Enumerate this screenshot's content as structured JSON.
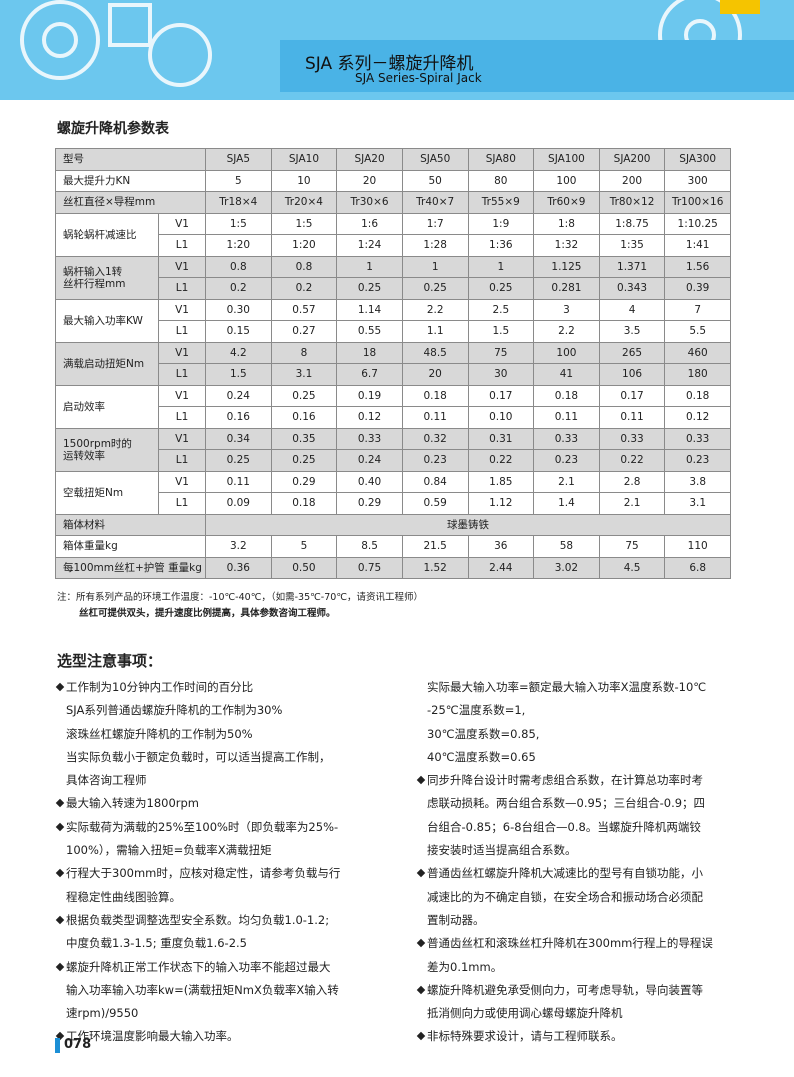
{
  "header": {
    "title": "SJA 系列－螺旋升降机",
    "subtitle": "SJA Series-Spiral Jack"
  },
  "section_title": "螺旋升降机参数表",
  "table": {
    "model_label": "型号",
    "models": [
      "SJA5",
      "SJA10",
      "SJA20",
      "SJA50",
      "SJA80",
      "SJA100",
      "SJA200",
      "SJA300"
    ],
    "rows": [
      {
        "label": [
          "最大提升力KN"
        ],
        "values": [
          "5",
          "10",
          "20",
          "50",
          "80",
          "100",
          "200",
          "300"
        ]
      },
      {
        "label": [
          "丝杠直径×导程mm"
        ],
        "values": [
          "Tr18×4",
          "Tr20×4",
          "Tr30×6",
          "Tr40×7",
          "Tr55×9",
          "Tr60×9",
          "Tr80×12",
          "Tr100×16"
        ]
      },
      {
        "label": [
          "蜗轮蜗杆减速比"
        ],
        "sub": [
          {
            "label": "V1",
            "values": [
              "1:5",
              "1:5",
              "1:6",
              "1:7",
              "1:9",
              "1:8",
              "1:8.75",
              "1:10.25"
            ]
          },
          {
            "label": "L1",
            "values": [
              "1:20",
              "1:20",
              "1:24",
              "1:28",
              "1:36",
              "1:32",
              "1:35",
              "1:41"
            ]
          }
        ]
      },
      {
        "label": [
          "蜗杆输入1转",
          "丝杆行程mm"
        ],
        "sub": [
          {
            "label": "V1",
            "values": [
              "0.8",
              "0.8",
              "1",
              "1",
              "1",
              "1.125",
              "1.371",
              "1.56"
            ]
          },
          {
            "label": "L1",
            "values": [
              "0.2",
              "0.2",
              "0.25",
              "0.25",
              "0.25",
              "0.281",
              "0.343",
              "0.39"
            ]
          }
        ]
      },
      {
        "label": [
          "最大输入功率KW"
        ],
        "sub": [
          {
            "label": "V1",
            "values": [
              "0.30",
              "0.57",
              "1.14",
              "2.2",
              "2.5",
              "3",
              "4",
              "7"
            ]
          },
          {
            "label": "L1",
            "values": [
              "0.15",
              "0.27",
              "0.55",
              "1.1",
              "1.5",
              "2.2",
              "3.5",
              "5.5"
            ]
          }
        ]
      },
      {
        "label": [
          "满载启动扭矩Nm"
        ],
        "sub": [
          {
            "label": "V1",
            "values": [
              "4.2",
              "8",
              "18",
              "48.5",
              "75",
              "100",
              "265",
              "460"
            ]
          },
          {
            "label": "L1",
            "values": [
              "1.5",
              "3.1",
              "6.7",
              "20",
              "30",
              "41",
              "106",
              "180"
            ]
          }
        ]
      },
      {
        "label": [
          "启动效率"
        ],
        "sub": [
          {
            "label": "V1",
            "values": [
              "0.24",
              "0.25",
              "0.19",
              "0.18",
              "0.17",
              "0.18",
              "0.17",
              "0.18"
            ]
          },
          {
            "label": "L1",
            "values": [
              "0.16",
              "0.16",
              "0.12",
              "0.11",
              "0.10",
              "0.11",
              "0.11",
              "0.12"
            ]
          }
        ]
      },
      {
        "label": [
          "1500rpm时的",
          "运转效率"
        ],
        "sub": [
          {
            "label": "V1",
            "values": [
              "0.34",
              "0.35",
              "0.33",
              "0.32",
              "0.31",
              "0.33",
              "0.33",
              "0.33"
            ]
          },
          {
            "label": "L1",
            "values": [
              "0.25",
              "0.25",
              "0.24",
              "0.23",
              "0.22",
              "0.23",
              "0.22",
              "0.23"
            ]
          }
        ]
      },
      {
        "label": [
          "空载扭矩Nm"
        ],
        "sub": [
          {
            "label": "V1",
            "values": [
              "0.11",
              "0.29",
              "0.40",
              "0.84",
              "1.85",
              "2.1",
              "2.8",
              "3.8"
            ]
          },
          {
            "label": "L1",
            "values": [
              "0.09",
              "0.18",
              "0.29",
              "0.59",
              "1.12",
              "1.4",
              "2.1",
              "3.1"
            ]
          }
        ]
      },
      {
        "label": [
          "箱体材料"
        ],
        "value": "球墨铸铁"
      },
      {
        "label": [
          "箱体重量kg"
        ],
        "values": [
          "3.2",
          "5",
          "8.5",
          "21.5",
          "36",
          "58",
          "75",
          "110"
        ]
      },
      {
        "label": [
          "每100mm丝杠+护管 重量kg"
        ],
        "values": [
          "0.36",
          "0.50",
          "0.75",
          "1.52",
          "2.44",
          "3.02",
          "4.5",
          "6.8"
        ]
      }
    ]
  },
  "notes": [
    "注：所有系列产品的环境工作温度：-10℃-40℃，（如需-35℃-70℃，请资讯工程师）",
    "丝杠可提供双头，提升速度比例提高，具体参数咨询工程师。"
  ],
  "selection": {
    "title": "选型注意事项：",
    "left": [
      {
        "bullet": true,
        "lines": [
          "工作制为10分钟内工作时间的百分比",
          "SJA系列普通齿螺旋升降机的工作制为30%",
          "滚珠丝杠螺旋升降机的工作制为50%",
          "当实际负载小于额定负载时，可以适当提高工作制，",
          "具体咨询工程师"
        ]
      },
      {
        "bullet": true,
        "lines": [
          "最大输入转速为1800rpm"
        ]
      },
      {
        "bullet": true,
        "lines": [
          "实际载荷为满载的25%至100%时（即负载率为25%-",
          "100%），需输入扭矩=负载率X满载扭矩"
        ]
      },
      {
        "bullet": true,
        "lines": [
          "行程大于300mm时，应核对稳定性，请参考负载与行",
          "程稳定性曲线图验算。"
        ]
      },
      {
        "bullet": true,
        "lines": [
          "根据负载类型调整选型安全系数。均匀负载1.0-1.2;",
          "中度负载1.3-1.5; 重度负载1.6-2.5"
        ]
      },
      {
        "bullet": true,
        "lines": [
          "螺旋升降机正常工作状态下的输入功率不能超过最大",
          "输入功率输入功率kw=(满载扭矩NmX负载率X输入转",
          "速rpm)/9550"
        ]
      },
      {
        "bullet": true,
        "lines": [
          "工作环境温度影响最大输入功率。"
        ]
      }
    ],
    "right": [
      {
        "bullet": false,
        "lines": [
          "实际最大输入功率=额定最大输入功率X温度系数-10℃",
          "-25℃温度系数=1,",
          "30℃温度系数=0.85,",
          "40℃温度系数=0.65"
        ]
      },
      {
        "bullet": true,
        "lines": [
          "同步升降台设计时需考虑组合系数，在计算总功率时考",
          "虑联动损耗。两台组合系数—0.95；三台组合-0.9；四",
          "台组合-0.85；6-8台组合—0.8。当螺旋升降机两端铰",
          "接安装时适当提高组合系数。"
        ]
      },
      {
        "bullet": true,
        "lines": [
          "普通齿丝杠螺旋升降机大减速比的型号有自锁功能，小",
          "减速比的为不确定自锁，在安全场合和振动场合必须配",
          "置制动器。"
        ]
      },
      {
        "bullet": true,
        "lines": [
          "普通齿丝杠和滚珠丝杠升降机在300mm行程上的导程误",
          "差为0.1mm。"
        ]
      },
      {
        "bullet": true,
        "lines": [
          "螺旋升降机避免承受侧向力，可考虑导轨，导向装置等",
          "抵消侧向力或使用调心螺母螺旋升降机"
        ]
      },
      {
        "bullet": true,
        "lines": [
          "非标特殊要求设计，请与工程师联系。"
        ]
      }
    ]
  },
  "page_number": "078"
}
